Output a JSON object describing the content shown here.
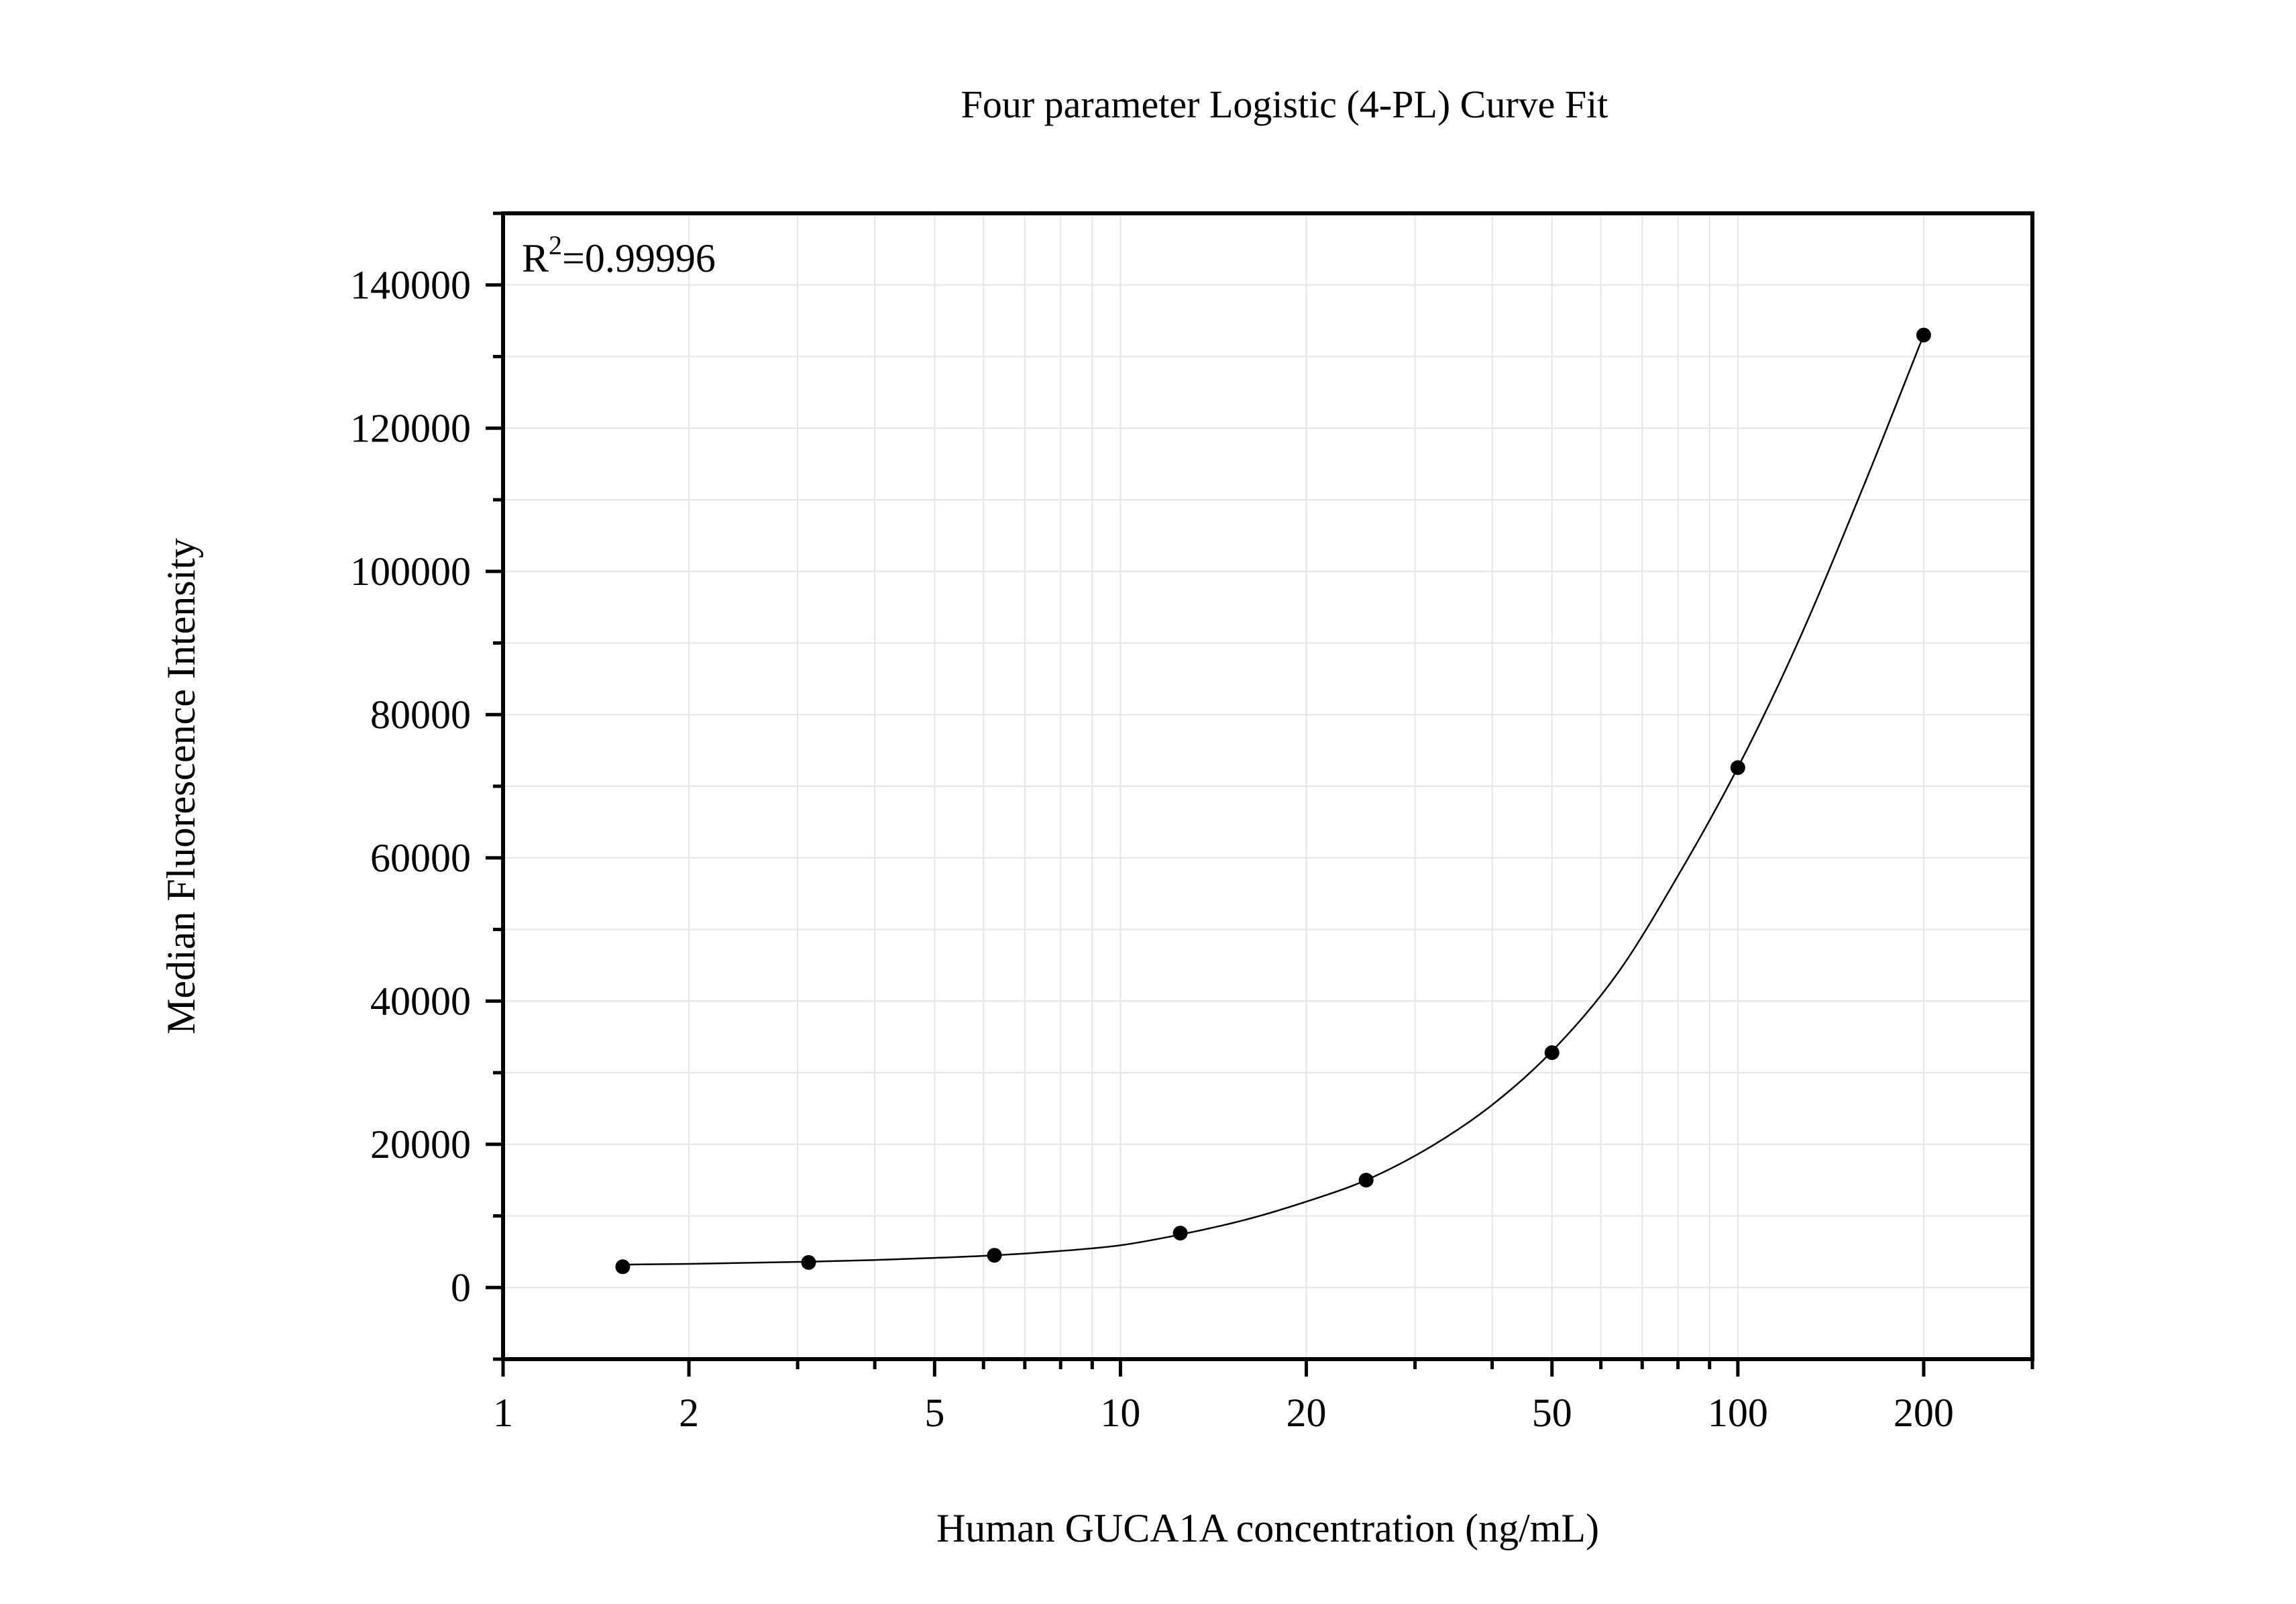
{
  "chart_data": {
    "type": "scatter",
    "title": "Four parameter Logistic (4-PL) Curve Fit",
    "xlabel": "Human GUCA1A concentration (ng/mL)",
    "ylabel": "Median Fluorescence Intensity",
    "annotation": {
      "base": "R",
      "sup": "2",
      "rest": "=0.99996"
    },
    "x_scale": "log",
    "xlim": [
      1,
      300
    ],
    "ylim": [
      -10000,
      150000
    ],
    "x_ticks": [
      1,
      2,
      5,
      10,
      20,
      50,
      100,
      200
    ],
    "x_tick_labels": [
      "1",
      "2",
      "5",
      "10",
      "20",
      "50",
      "100",
      "200"
    ],
    "y_ticks": [
      0,
      20000,
      40000,
      60000,
      80000,
      100000,
      120000,
      140000
    ],
    "y_tick_labels": [
      "0",
      "20000",
      "40000",
      "60000",
      "80000",
      "100000",
      "120000",
      "140000"
    ],
    "grid": true,
    "points": {
      "x": [
        1.5625,
        3.125,
        6.25,
        12.5,
        25,
        50,
        100,
        200
      ],
      "y": [
        2900,
        3500,
        4500,
        7600,
        15000,
        32800,
        72600,
        133000
      ]
    },
    "fit_curve": {
      "model": "4PL",
      "x": [
        1.5625,
        2,
        3.125,
        4,
        6.25,
        8,
        10,
        12.5,
        16,
        20,
        25,
        32,
        40,
        50,
        64,
        80,
        100,
        125,
        160,
        200
      ],
      "y": [
        3200,
        3300,
        3600,
        3850,
        4500,
        5100,
        5900,
        7400,
        9500,
        12000,
        15000,
        19800,
        25500,
        33000,
        44000,
        57500,
        72600,
        90000,
        112000,
        133000
      ]
    },
    "colors": {
      "points": "#000000",
      "curve": "#000000",
      "grid": "#e6e6e6",
      "axes": "#000000"
    }
  }
}
